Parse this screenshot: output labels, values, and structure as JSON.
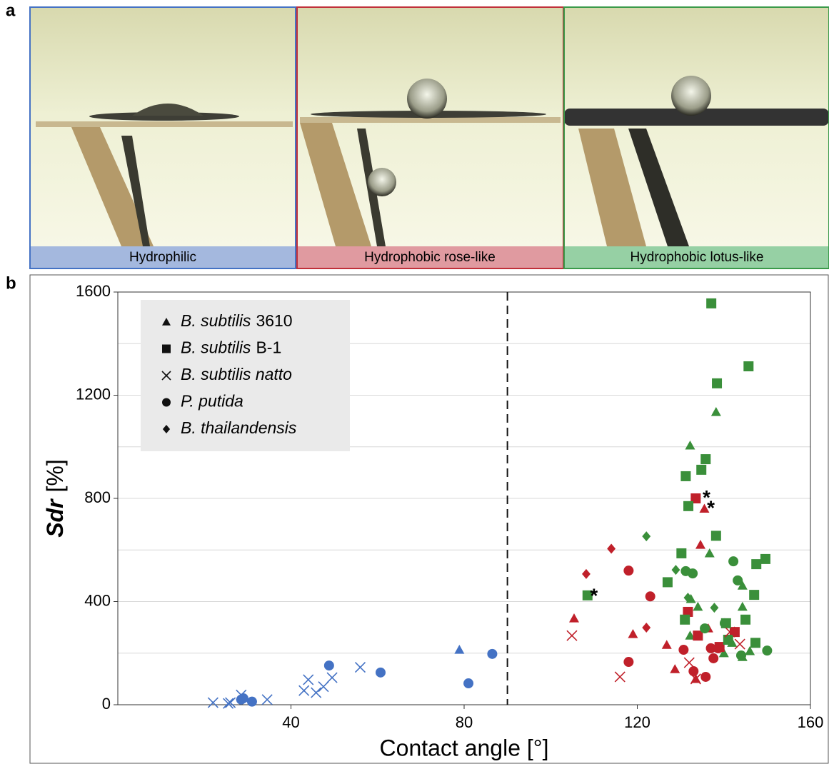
{
  "figure": {
    "panel_labels": [
      "a",
      "b"
    ],
    "captions": [
      "Hydrophilic",
      "Hydrophobic rose-like",
      "Hydrophobic lotus-like"
    ]
  },
  "chart_data": {
    "type": "scatter",
    "x_label": "Contact angle [°]",
    "y_label": [
      "Sdr",
      "[%]"
    ],
    "xlim": [
      0,
      160
    ],
    "xticks": [
      40,
      80,
      120,
      160
    ],
    "ylim": [
      0,
      1600
    ],
    "yticks": [
      0,
      400,
      800,
      1200,
      1600
    ],
    "minor_yticks": [
      200,
      600,
      1000,
      1400
    ],
    "grid": true,
    "threshold_x": 90,
    "legend": "upper left",
    "annotations": [
      {
        "text": "*",
        "x": 136,
        "y": 820
      },
      {
        "text": "*",
        "x": 137,
        "y": 780
      },
      {
        "text": "*",
        "x": 110,
        "y": 440
      }
    ],
    "series": [
      {
        "name": "B. subtilis",
        "strain": "3610",
        "marker": "triangle",
        "groups": [
          {
            "color": "#4472c4",
            "x": [
              78.9
            ],
            "values": [
              213
            ]
          },
          {
            "color": "#c0202a",
            "x": [
              105.4,
              119,
              126.8,
              128.7,
              135.5,
              134.6,
              136.4,
              133.5
            ],
            "values": [
              335,
              274,
              232,
              138,
              760,
              620,
              296,
              100
            ]
          },
          {
            "color": "#3a8f3a",
            "x": [
              138.2,
              132.2,
              136.7,
              132.4,
              134,
              144.3,
              144.3,
              141.9,
              146,
              132.2,
              140,
              144.3
            ],
            "values": [
              1135,
              1005,
              587,
              410,
              380,
              462,
              380,
              240,
              208,
              268,
              200,
              185
            ]
          }
        ]
      },
      {
        "name": "B. subtilis",
        "strain": "B-1",
        "marker": "square",
        "groups": [
          {
            "color": "#c0202a",
            "x": [
              133.5,
              131.7,
              134,
              139,
              142.5
            ],
            "values": [
              800,
              360,
              268,
              224,
              282
            ]
          },
          {
            "color": "#3a8f3a",
            "x": [
              137.1,
              145.7,
              138.4,
              135.8,
              134.8,
              131.2,
              131.8,
              138.2,
              130.2,
              127,
              108.5,
              149.6,
              147.5,
              147,
              145,
              140.5,
              141,
              131,
              147.3
            ],
            "values": [
              1556,
              1312,
              1246,
              952,
              911,
              886,
              770,
              655,
              587,
              475,
              424,
              565,
              545,
              426,
              330,
              316,
              252,
              330,
              240
            ]
          }
        ]
      },
      {
        "name": "B. subtilis natto",
        "marker": "cross",
        "groups": [
          {
            "color": "#4472c4",
            "x": [
              22,
              25.5,
              26,
              28.5,
              34.5,
              43,
              44,
              45.8,
              47.5,
              49.5,
              56
            ],
            "values": [
              8,
              5,
              8,
              38,
              20,
              55,
              97,
              47,
              70,
              105,
              145
            ]
          },
          {
            "color": "#c0202a",
            "x": [
              104.9,
              116,
              132,
              133.5,
              141.4,
              143.7
            ],
            "values": [
              268,
              108,
              163,
              100,
              282,
              235
            ]
          }
        ]
      },
      {
        "name": "P. putida",
        "marker": "circle",
        "groups": [
          {
            "color": "#4472c4",
            "x": [
              28.5,
              29,
              31,
              48.8,
              60.7,
              81,
              86.5
            ],
            "values": [
              20,
              25,
              12,
              152,
              125,
              83,
              197
            ]
          },
          {
            "color": "#c0202a",
            "x": [
              118,
              118,
              123,
              130.7,
              133,
              135.8,
              137.6,
              137,
              138.7
            ],
            "values": [
              166,
              520,
              420,
              213,
              130,
              108,
              180,
              219,
              219
            ]
          },
          {
            "color": "#3a8f3a",
            "x": [
              131.2,
              132.8,
              142.2,
              143.2,
              135.6,
              140.2,
              150,
              144
            ],
            "values": [
              518,
              509,
              556,
              482,
              296,
              316,
              210,
              191
            ]
          }
        ]
      },
      {
        "name": "B. thailandensis",
        "marker": "diamond",
        "groups": [
          {
            "color": "#c0202a",
            "x": [
              114,
              108.2,
              122.1
            ],
            "values": [
              605,
              507,
              299
            ]
          },
          {
            "color": "#3a8f3a",
            "x": [
              122.1,
              128.9,
              131.7,
              137.8
            ],
            "values": [
              653,
              523,
              415,
              376
            ]
          }
        ]
      }
    ]
  }
}
